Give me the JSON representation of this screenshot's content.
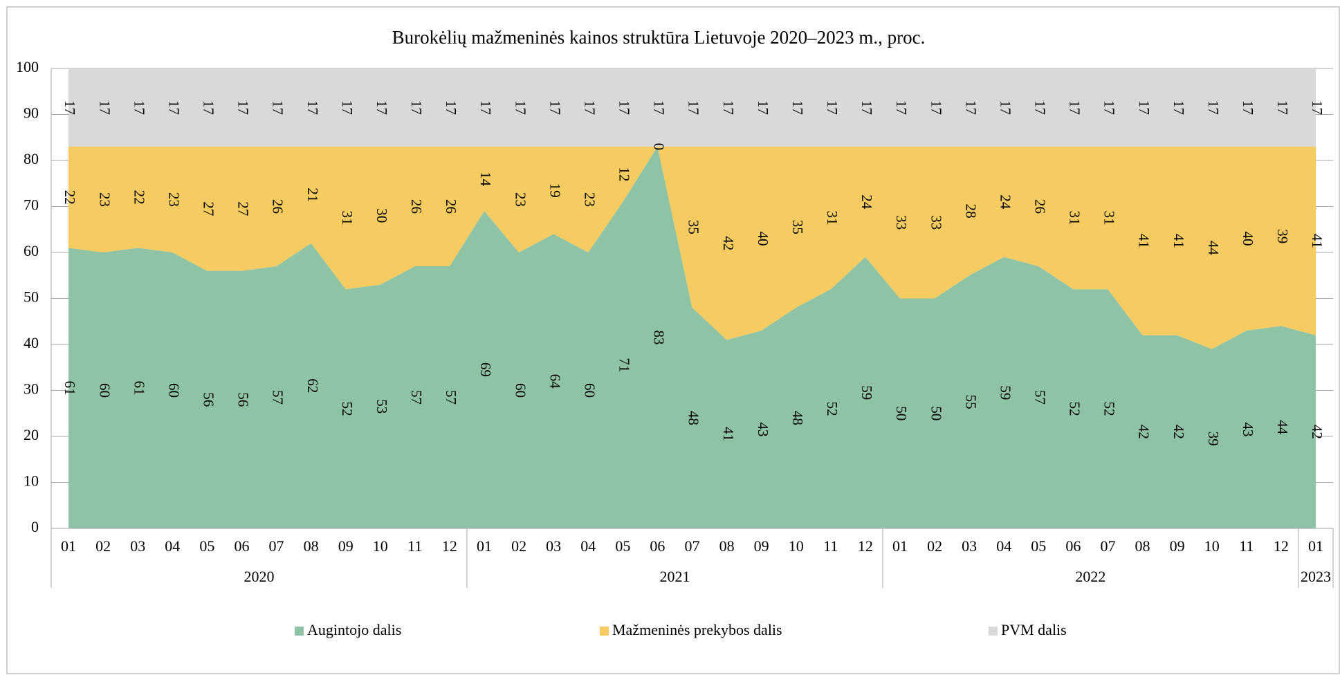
{
  "chart_data": {
    "type": "stacked_area",
    "title": "Burokėlių mažmeninės kainos struktūra Lietuvoje 2020–2023 m., proc.",
    "category_groups": [
      {
        "label": "2020",
        "months": [
          "01",
          "02",
          "03",
          "04",
          "05",
          "06",
          "07",
          "08",
          "09",
          "10",
          "11",
          "12"
        ]
      },
      {
        "label": "2021",
        "months": [
          "01",
          "02",
          "03",
          "04",
          "05",
          "06",
          "07",
          "08",
          "09",
          "10",
          "11",
          "12"
        ]
      },
      {
        "label": "2022",
        "months": [
          "01",
          "02",
          "03",
          "04",
          "05",
          "06",
          "07",
          "08",
          "09",
          "10",
          "11",
          "12"
        ]
      },
      {
        "label": "2023",
        "months": [
          "01"
        ]
      }
    ],
    "series": [
      {
        "name": "Augintojo dalis",
        "color": "#8fc3a6",
        "values": [
          61,
          60,
          61,
          60,
          56,
          56,
          57,
          62,
          52,
          53,
          57,
          57,
          69,
          60,
          64,
          60,
          71,
          83,
          48,
          41,
          43,
          48,
          52,
          59,
          50,
          50,
          55,
          59,
          57,
          52,
          52,
          42,
          42,
          39,
          43,
          44,
          42
        ]
      },
      {
        "name": "Mažmeninės prekybos dalis",
        "color": "#f5cb62",
        "values": [
          22,
          23,
          22,
          23,
          27,
          27,
          26,
          21,
          31,
          30,
          26,
          26,
          14,
          23,
          19,
          23,
          12,
          0,
          35,
          42,
          40,
          35,
          31,
          24,
          33,
          33,
          28,
          24,
          26,
          31,
          31,
          41,
          41,
          44,
          40,
          39,
          41
        ]
      },
      {
        "name": "PVM dalis",
        "color": "#d9d9d9",
        "values": [
          17,
          17,
          17,
          17,
          17,
          17,
          17,
          17,
          17,
          17,
          17,
          17,
          17,
          17,
          17,
          17,
          17,
          17,
          17,
          17,
          17,
          17,
          17,
          17,
          17,
          17,
          17,
          17,
          17,
          17,
          17,
          17,
          17,
          17,
          17,
          17,
          17
        ]
      }
    ],
    "ylim": [
      0,
      100
    ],
    "yticks": [
      0,
      10,
      20,
      30,
      40,
      50,
      60,
      70,
      80,
      90,
      100
    ],
    "grid": true,
    "legend": "bottom"
  }
}
